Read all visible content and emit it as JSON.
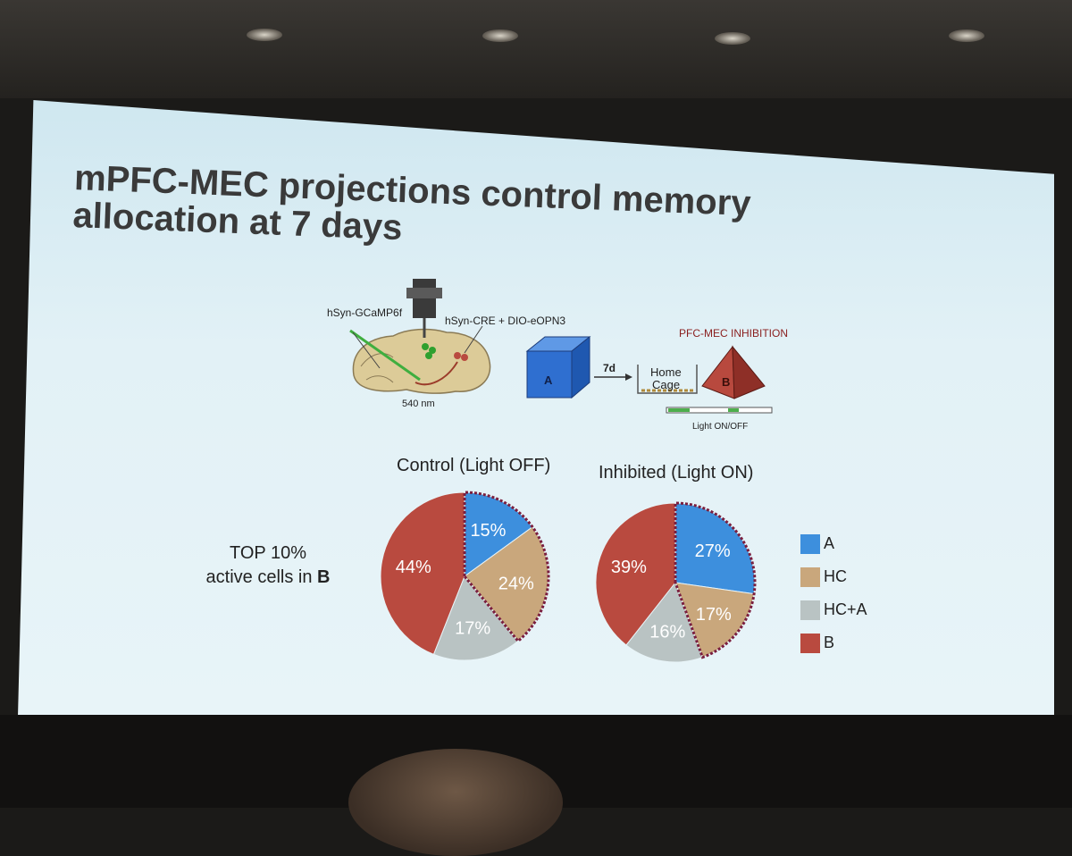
{
  "slide": {
    "title_line1": "mPFC-MEC projections control memory",
    "title_line2": "allocation at 7 days"
  },
  "diagram": {
    "label_gcamp": "hSyn-GCaMP6f",
    "label_cre": "hSyn-CRE + DIO-eOPN3",
    "label_wavelength": "540 nm",
    "label_context_a": "A",
    "label_delay": "7d",
    "label_home_cage_1": "Home",
    "label_home_cage_2": "Cage",
    "label_inhibition": "PFC-MEC INHIBITION",
    "label_context_b": "B",
    "label_light": "Light ON/OFF"
  },
  "row_label": {
    "line1": "TOP 10%",
    "line2_prefix": "active cells in ",
    "line2_bold": "B"
  },
  "colors": {
    "A": "#3d8fdd",
    "HC": "#c9a77c",
    "HC+A": "#b9c3c3",
    "B": "#b94a3f",
    "outline": "#7a1e3e"
  },
  "chart_data": [
    {
      "type": "pie",
      "title": "Control (Light OFF)",
      "labels": [
        "A",
        "HC",
        "HC+A",
        "B"
      ],
      "values": [
        15,
        24,
        17,
        44
      ],
      "value_labels": [
        "15%",
        "24%",
        "17%",
        "44%"
      ]
    },
    {
      "type": "pie",
      "title": "Inhibited (Light ON)",
      "labels": [
        "A",
        "HC",
        "HC+A",
        "B"
      ],
      "values": [
        27,
        17,
        16,
        39
      ],
      "value_labels": [
        "27%",
        "17%",
        "16%",
        "39%"
      ]
    }
  ],
  "legend": [
    {
      "label": "A",
      "color": "#3d8fdd"
    },
    {
      "label": "HC",
      "color": "#c9a77c"
    },
    {
      "label": "HC+A",
      "color": "#b9c3c3"
    },
    {
      "label": "B",
      "color": "#b94a3f"
    }
  ]
}
